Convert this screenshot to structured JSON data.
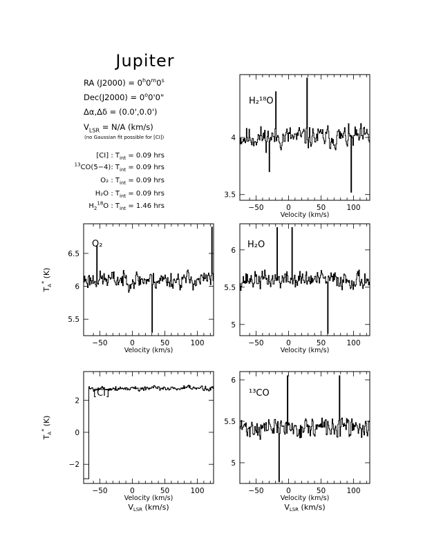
{
  "header": {
    "title": "Jupiter",
    "ra_label": "RA (J2000) =",
    "ra_h": "0",
    "ra_m": "0",
    "ra_s": "0",
    "dec_label": "Dec(J2000) =",
    "dec_d": "0",
    "dec_m": "0",
    "dec_s": "0",
    "offset_label": "Δα,Δδ =",
    "offset_value": "(0.0',0.0')",
    "vlsr_value": "= N/A  (km/s)",
    "vlsr_note": "(no Gaussian fit possible for [CI])"
  },
  "integration_times": [
    {
      "line": "[CI] :",
      "value": "= 0.09 hrs"
    },
    {
      "line": "CO(5−4):",
      "iso": "13",
      "value": "= 0.09 hrs"
    },
    {
      "line": "O₂ :",
      "value": "= 0.09 hrs"
    },
    {
      "line": "H₂O :",
      "value": "= 0.09 hrs"
    },
    {
      "line": "O :",
      "value": "= 1.46 hrs",
      "h2_18": true
    }
  ],
  "t_int_label": "T",
  "t_int_sub": "int",
  "chart_data": [
    {
      "type": "line",
      "panel": "h2-18o",
      "label": "H₂¹⁸O",
      "xlabel": "Velocity (km/s)",
      "xlim": [
        -75,
        125
      ],
      "ylim": [
        3.45,
        4.55
      ],
      "xticks": [
        -50,
        0,
        50,
        100
      ],
      "yticks": [
        3.5,
        4
      ],
      "ytick_labels": [
        "3.5",
        "4"
      ],
      "baseline": 4.0,
      "noise": 0.13,
      "seed": 11,
      "spikes": [
        [
          28,
          4.52
        ],
        [
          96,
          3.52
        ],
        [
          -30,
          3.7
        ],
        [
          -20,
          4.4
        ]
      ]
    },
    {
      "type": "line",
      "panel": "o2",
      "label": "O₂",
      "xlabel": "Velocity (km/s)",
      "ylabel": "T_A* (K)",
      "xlim": [
        -75,
        125
      ],
      "ylim": [
        5.25,
        6.95
      ],
      "xticks": [
        -50,
        0,
        50,
        100
      ],
      "yticks": [
        5.5,
        6,
        6.5
      ],
      "ytick_labels": [
        "5.5",
        "6",
        "6.5"
      ],
      "baseline": 6.1,
      "noise": 0.18,
      "seed": 23,
      "spikes": [
        [
          30,
          5.3
        ],
        [
          122,
          6.9
        ],
        [
          -55,
          6.62
        ]
      ]
    },
    {
      "type": "line",
      "panel": "h2o",
      "label": "H₂O",
      "xlabel": "Velocity (km/s)",
      "xlim": [
        -75,
        125
      ],
      "ylim": [
        4.85,
        6.35
      ],
      "xticks": [
        -50,
        0,
        50,
        100
      ],
      "yticks": [
        5,
        5.5,
        6
      ],
      "ytick_labels": [
        "5",
        "5.5",
        "6"
      ],
      "baseline": 5.6,
      "noise": 0.16,
      "seed": 37,
      "spikes": [
        [
          -18,
          6.3
        ],
        [
          5,
          6.3
        ],
        [
          60,
          4.88
        ]
      ]
    },
    {
      "type": "line",
      "panel": "ci",
      "label": "[CI]",
      "xlabel": "Velocity (km/s)",
      "xlabel2": "V_LSR (km/s)",
      "ylabel": "T_A* (K)",
      "xlim": [
        -75,
        125
      ],
      "ylim": [
        -3.2,
        3.8
      ],
      "xticks": [
        -50,
        0,
        50,
        100
      ],
      "yticks": [
        -2,
        0,
        2
      ],
      "ytick_labels": [
        "−2",
        "0",
        "2"
      ],
      "baseline": 2.75,
      "noise": 0.22,
      "seed": 5,
      "start_dip": -2.9
    },
    {
      "type": "line",
      "panel": "13co",
      "label": "¹³CO",
      "xlabel": "Velocity (km/s)",
      "xlabel2": "V_LSR (km/s)",
      "xlim": [
        -75,
        125
      ],
      "ylim": [
        4.75,
        6.1
      ],
      "xticks": [
        -50,
        0,
        50,
        100
      ],
      "yticks": [
        5,
        5.5,
        6
      ],
      "ytick_labels": [
        "5",
        "5.5",
        "6"
      ],
      "baseline": 5.42,
      "noise": 0.16,
      "seed": 71,
      "spikes": [
        [
          -15,
          4.77
        ],
        [
          -2,
          6.05
        ],
        [
          78,
          6.05
        ]
      ]
    }
  ]
}
